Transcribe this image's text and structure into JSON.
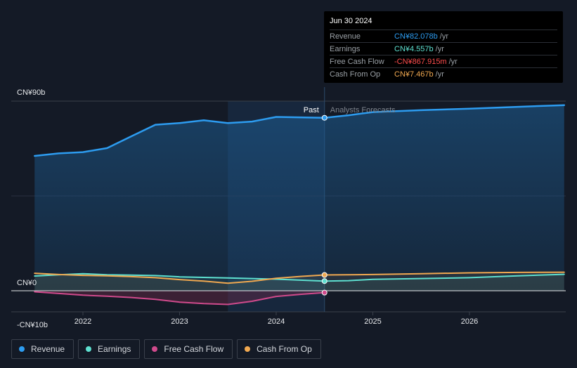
{
  "tooltip": {
    "date": "Jun 30 2024",
    "rows": [
      {
        "label": "Revenue",
        "value": "CN¥82.078b",
        "unit": "/yr",
        "color": "#2d9cf0"
      },
      {
        "label": "Earnings",
        "value": "CN¥4.557b",
        "unit": "/yr",
        "color": "#5ee0d0"
      },
      {
        "label": "Free Cash Flow",
        "value": "-CN¥867.915m",
        "unit": "/yr",
        "color": "#ff4d4d"
      },
      {
        "label": "Cash From Op",
        "value": "CN¥7.467b",
        "unit": "/yr",
        "color": "#f0a850"
      }
    ]
  },
  "legend": [
    {
      "label": "Revenue",
      "color": "#2d9cf0"
    },
    {
      "label": "Earnings",
      "color": "#5ee0d0"
    },
    {
      "label": "Free Cash Flow",
      "color": "#d04a8c"
    },
    {
      "label": "Cash From Op",
      "color": "#f0a850"
    }
  ],
  "chart_data": {
    "type": "line",
    "title": "",
    "xlabel": "",
    "ylabel": "",
    "y_tick_labels": [
      "CN¥90b",
      "CN¥0",
      "-CN¥10b"
    ],
    "y_ticks": [
      90,
      0,
      -10
    ],
    "ylim": [
      -10,
      90
    ],
    "xlim": [
      2021.5,
      2026.98
    ],
    "x_tick_labels": [
      "2022",
      "2023",
      "2024",
      "2025",
      "2026"
    ],
    "x_ticks": [
      2022,
      2023,
      2024,
      2025,
      2026
    ],
    "past_label": "Past",
    "forecast_label": "Analysts Forecasts",
    "divider_x": 2024.5,
    "highlight_start_x": 2023.5,
    "series": [
      {
        "name": "Revenue",
        "color": "#2d9cf0",
        "area": true,
        "points": [
          [
            2021.5,
            64
          ],
          [
            2021.75,
            65.2
          ],
          [
            2022.0,
            65.8
          ],
          [
            2022.25,
            67.7
          ],
          [
            2022.5,
            73.3
          ],
          [
            2022.75,
            78.8
          ],
          [
            2023.0,
            79.6
          ],
          [
            2023.25,
            80.9
          ],
          [
            2023.5,
            79.6
          ],
          [
            2023.75,
            80.3
          ],
          [
            2024.0,
            82.5
          ],
          [
            2024.25,
            82.3
          ],
          [
            2024.5,
            82.1
          ],
          [
            2024.75,
            83.3
          ],
          [
            2025.0,
            84.8
          ],
          [
            2025.5,
            85.7
          ],
          [
            2026.0,
            86.4
          ],
          [
            2026.5,
            87.3
          ],
          [
            2026.98,
            88.1
          ]
        ]
      },
      {
        "name": "Earnings",
        "color": "#5ee0d0",
        "points": [
          [
            2021.5,
            7
          ],
          [
            2021.75,
            7.6
          ],
          [
            2022.0,
            8.1
          ],
          [
            2022.25,
            7.6
          ],
          [
            2022.5,
            7.4
          ],
          [
            2022.75,
            7.2
          ],
          [
            2023.0,
            6.6
          ],
          [
            2023.5,
            6.1
          ],
          [
            2024.0,
            5.5
          ],
          [
            2024.5,
            4.6
          ],
          [
            2024.75,
            4.8
          ],
          [
            2025.0,
            5.4
          ],
          [
            2025.5,
            5.8
          ],
          [
            2026.0,
            6.2
          ],
          [
            2026.5,
            7.1
          ],
          [
            2026.98,
            7.8
          ]
        ]
      },
      {
        "name": "Free Cash Flow",
        "color": "#d04a8c",
        "points": [
          [
            2021.5,
            -0.5
          ],
          [
            2021.75,
            -1.3
          ],
          [
            2022.0,
            -2.1
          ],
          [
            2022.25,
            -2.6
          ],
          [
            2022.5,
            -3.2
          ],
          [
            2022.75,
            -4.1
          ],
          [
            2023.0,
            -5.4
          ],
          [
            2023.25,
            -6.1
          ],
          [
            2023.5,
            -6.5
          ],
          [
            2023.75,
            -5
          ],
          [
            2024.0,
            -2.7
          ],
          [
            2024.25,
            -1.7
          ],
          [
            2024.5,
            -0.87
          ]
        ]
      },
      {
        "name": "Cash From Op",
        "color": "#f0a850",
        "points": [
          [
            2021.5,
            8.3
          ],
          [
            2021.75,
            7.7
          ],
          [
            2022.0,
            7.3
          ],
          [
            2022.25,
            7.1
          ],
          [
            2022.5,
            6.7
          ],
          [
            2022.75,
            6.2
          ],
          [
            2023.0,
            5.3
          ],
          [
            2023.25,
            4.6
          ],
          [
            2023.5,
            3.6
          ],
          [
            2023.75,
            4.5
          ],
          [
            2024.0,
            5.9
          ],
          [
            2024.25,
            6.8
          ],
          [
            2024.5,
            7.5
          ],
          [
            2025.0,
            7.7
          ],
          [
            2025.5,
            8.1
          ],
          [
            2026.0,
            8.5
          ],
          [
            2026.5,
            8.7
          ],
          [
            2026.98,
            8.8
          ]
        ]
      }
    ]
  }
}
